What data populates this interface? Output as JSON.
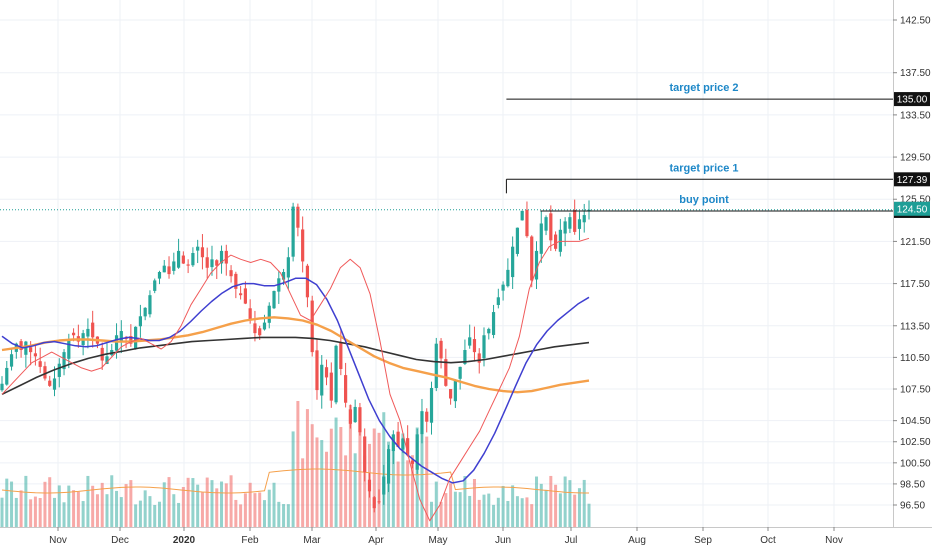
{
  "chart_data": {
    "type": "candlestick",
    "title": "",
    "xlabel": "",
    "ylabel": "",
    "ylim": [
      94.5,
      145.0
    ],
    "y_ticks": [
      96.5,
      98.5,
      100.5,
      102.5,
      104.5,
      107.5,
      110.5,
      113.5,
      117.5,
      121.5,
      125.5,
      129.5,
      133.5,
      137.5,
      142.5
    ],
    "y_tick_labels": [
      "96.50",
      "98.50",
      "100.50",
      "102.50",
      "104.50",
      "107.50",
      "110.50",
      "113.50",
      "117.50",
      "121.50",
      "125.50",
      "129.50",
      "133.50",
      "137.50",
      "142.50"
    ],
    "x_labels": [
      "Nov",
      "Dec",
      "2020",
      "Feb",
      "Mar",
      "Apr",
      "May",
      "Jun",
      "Jul",
      "Aug",
      "Sep",
      "Oct",
      "Nov"
    ],
    "x_label_index": [
      0,
      1,
      2,
      3,
      4,
      5,
      6,
      7,
      8,
      9,
      10,
      11,
      12
    ],
    "colors": {
      "up": "#26a69a",
      "down": "#ef5350",
      "ma_fast": "#f05a5a",
      "ma_mid": "#3f3fd0",
      "ma_orange": "#f5a04a",
      "ma_slow": "#333333",
      "volume_ma": "#f5a04a",
      "accent_badge": "#1e9e96"
    },
    "horizontal_levels": [
      {
        "value": 135.0,
        "label": "135.00",
        "annotation": "target price 2",
        "start_month": 7.05
      },
      {
        "value": 127.39,
        "label": "127.39",
        "annotation": "target price 1",
        "start_month": 7.05
      },
      {
        "value": 124.39,
        "label": "124.39",
        "annotation": "buy point",
        "start_month": 7.55
      }
    ],
    "last_price": {
      "value": 124.5,
      "label": "124.50"
    },
    "series_close": [
      108.0,
      109.5,
      110.8,
      111.8,
      111.2,
      112.0,
      111.0,
      110.6,
      109.6,
      108.5,
      107.8,
      108.5,
      109.9,
      111.0,
      112.2,
      112.6,
      112.0,
      112.8,
      113.2,
      112.4,
      111.8,
      110.2,
      110.6,
      111.2,
      112.6,
      113.0,
      112.3,
      111.8,
      113.4,
      114.4,
      115.2,
      116.4,
      117.8,
      118.6,
      119.2,
      118.4,
      119.6,
      120.6,
      119.4,
      119.2,
      120.4,
      121.0,
      120.0,
      119.0,
      119.8,
      119.2,
      120.6,
      119.4,
      118.2,
      117.0,
      116.4,
      115.6,
      114.0,
      112.8,
      112.6,
      113.8,
      115.4,
      116.8,
      118.0,
      118.6,
      120.0,
      124.8,
      122.8,
      119.6,
      116.2,
      111.0,
      107.4,
      109.8,
      108.6,
      106.4,
      111.6,
      109.4,
      106.2,
      104.2,
      105.8,
      103.4,
      99.6,
      97.8,
      96.2,
      96.8,
      99.2,
      101.8,
      103.2,
      102.0,
      102.8,
      101.2,
      100.4,
      103.2,
      105.4,
      104.4,
      107.6,
      111.8,
      110.4,
      107.8,
      106.6,
      108.4,
      109.6,
      111.2,
      112.4,
      111.0,
      110.0,
      112.6,
      113.2,
      114.8,
      116.2,
      117.4,
      118.8,
      121.0,
      122.8,
      124.4,
      122.0,
      117.8,
      120.6,
      123.2,
      123.8,
      121.6,
      120.8,
      122.6,
      123.4,
      123.8,
      122.4,
      123.6,
      124.0,
      124.5
    ],
    "sma_fast": [
      107.0,
      108.0,
      109.0,
      110.0,
      110.5,
      111.0,
      110.5,
      110.0,
      109.5,
      109.2,
      109.5,
      110.5,
      111.5,
      112.0,
      112.3,
      111.8,
      111.3,
      112.0,
      113.5,
      115.5,
      117.0,
      118.5,
      119.5,
      120.2,
      119.8,
      119.5,
      119.8,
      119.5,
      118.5,
      116.5,
      114.5,
      114.0,
      115.5,
      117.0,
      119.0,
      119.8,
      119.0,
      116.5,
      112.0,
      107.0,
      104.5,
      100.5,
      97.0,
      95.0,
      96.5,
      99.0,
      100.5,
      102.0,
      103.5,
      105.5,
      107.5,
      109.5,
      112.5,
      117.0,
      119.5,
      121.0,
      121.5,
      121.5,
      121.5,
      121.8
    ],
    "sma_mid": [
      112.5,
      111.8,
      111.4,
      111.6,
      111.9,
      112.0,
      111.8,
      111.6,
      111.5,
      111.6,
      111.9,
      112.2,
      112.4,
      112.3,
      112.1,
      112.1,
      112.4,
      113.0,
      113.9,
      114.9,
      115.8,
      116.6,
      117.2,
      117.5,
      117.5,
      117.3,
      117.3,
      117.6,
      118.0,
      118.0,
      117.4,
      116.0,
      114.0,
      111.5,
      109.0,
      106.5,
      104.5,
      103.0,
      101.8,
      101.0,
      100.2,
      99.6,
      99.0,
      98.6,
      98.8,
      99.8,
      101.4,
      103.3,
      105.5,
      107.8,
      110.0,
      111.7,
      113.0,
      114.0,
      114.8,
      115.6,
      116.2
    ],
    "sma_orange": [
      111.2,
      111.4,
      111.6,
      111.9,
      112.1,
      112.2,
      112.2,
      112.1,
      112.0,
      112.0,
      112.1,
      112.2,
      112.4,
      112.6,
      112.9,
      113.3,
      113.7,
      114.0,
      114.2,
      114.3,
      114.2,
      114.0,
      113.6,
      113.0,
      112.2,
      111.4,
      110.6,
      110.0,
      109.5,
      109.2,
      108.9,
      108.6,
      108.2,
      107.8,
      107.5,
      107.3,
      107.2,
      107.3,
      107.6,
      107.9,
      108.1,
      108.3
    ],
    "sma_slow": [
      107.0,
      107.8,
      108.6,
      109.3,
      109.9,
      110.4,
      110.8,
      111.1,
      111.4,
      111.6,
      111.8,
      112.0,
      112.1,
      112.2,
      112.3,
      112.4,
      112.4,
      112.4,
      112.3,
      112.1,
      111.8,
      111.5,
      111.1,
      110.7,
      110.3,
      110.1,
      110.0,
      110.1,
      110.3,
      110.6,
      110.9,
      111.2,
      111.5,
      111.7,
      111.9
    ]
  }
}
